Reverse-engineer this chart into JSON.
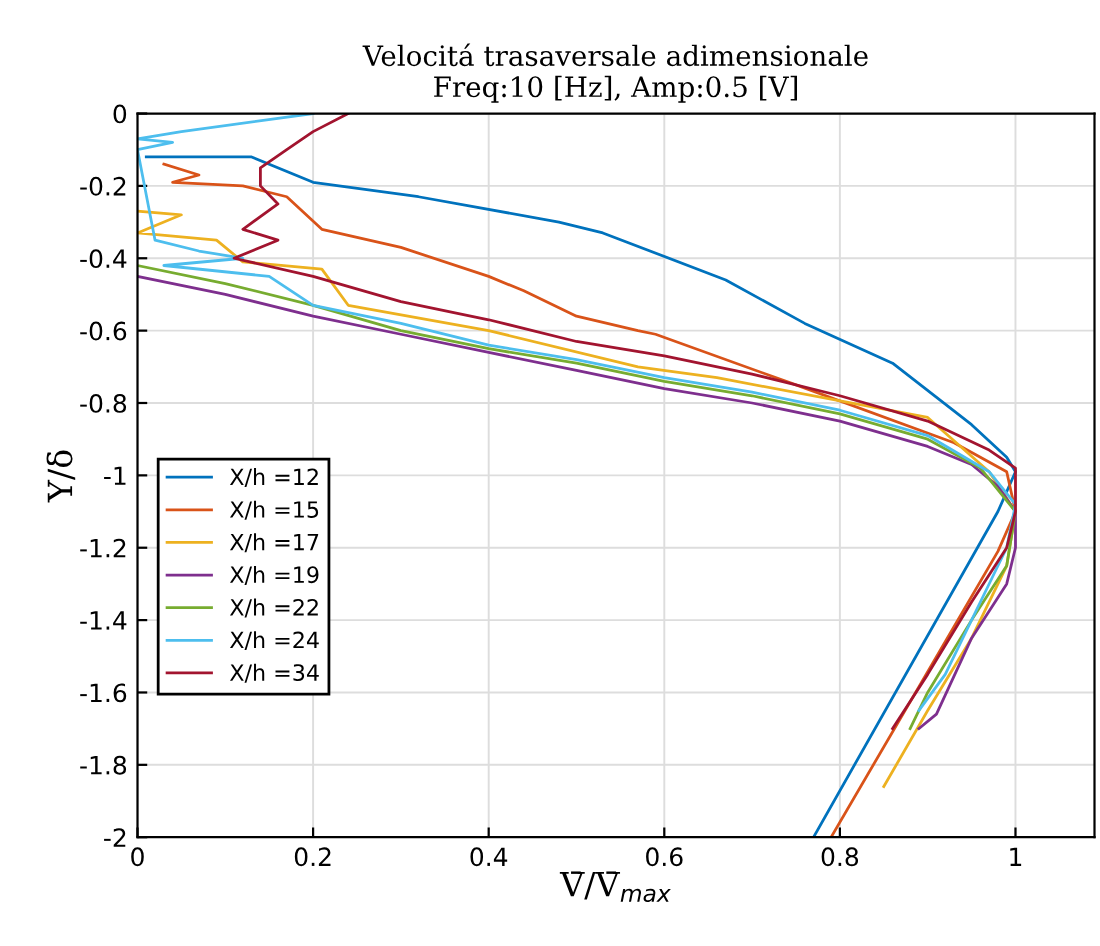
{
  "chart_data": {
    "type": "line",
    "title": "Velocitá trasaversale adimensionale",
    "subtitle": "Freq:10 [Hz], Amp:0.5 [V]",
    "xlabel": "V̄/V̄$_{max}$",
    "ylabel": "Y/δ",
    "xlim": [
      0,
      1.09
    ],
    "ylim": [
      -2,
      0
    ],
    "xticks": [
      0,
      0.2,
      0.4,
      0.6,
      0.8,
      1
    ],
    "yticks": [
      0,
      -0.2,
      -0.4,
      -0.6,
      -0.8,
      -1,
      -1.2,
      -1.4,
      -1.6,
      -1.8,
      -2
    ],
    "grid": true,
    "legend": "left",
    "line_style": "solid",
    "series": [
      {
        "name": "X/h =12",
        "color": "#0072bd",
        "x": [
          0.01,
          0.13,
          0.2,
          0.32,
          0.48,
          0.53,
          0.67,
          0.76,
          0.86,
          0.95,
          0.99,
          1.0,
          0.98,
          0.77
        ],
        "values": [
          -0.12,
          -0.12,
          -0.19,
          -0.23,
          -0.3,
          -0.33,
          -0.46,
          -0.58,
          -0.69,
          -0.86,
          -0.95,
          -0.99,
          -1.1,
          -2.0
        ]
      },
      {
        "name": "X/h =15",
        "color": "#d95319",
        "x": [
          0.03,
          0.07,
          0.04,
          0.12,
          0.17,
          0.21,
          0.3,
          0.4,
          0.44,
          0.5,
          0.57,
          0.59,
          0.75,
          0.93,
          0.99,
          1.0,
          0.98,
          0.79
        ],
        "values": [
          -0.14,
          -0.17,
          -0.19,
          -0.2,
          -0.23,
          -0.32,
          -0.37,
          -0.45,
          -0.49,
          -0.56,
          -0.6,
          -0.61,
          -0.75,
          -0.91,
          -0.99,
          -1.1,
          -1.21,
          -2.0
        ]
      },
      {
        "name": "X/h =17",
        "color": "#edb120",
        "x": [
          0,
          0.05,
          0,
          0.09,
          0.12,
          0.21,
          0.24,
          0.4,
          0.57,
          0.66,
          0.9,
          0.97,
          1.0,
          0.99,
          0.95,
          0.9,
          0.85
        ],
        "values": [
          -0.27,
          -0.28,
          -0.33,
          -0.35,
          -0.41,
          -0.43,
          -0.53,
          -0.6,
          -0.7,
          -0.73,
          -0.84,
          -0.99,
          -1.1,
          -1.25,
          -1.45,
          -1.65,
          -1.86
        ]
      },
      {
        "name": "X/h =19",
        "color": "#7e2f8e",
        "x": [
          0,
          0.1,
          0.2,
          0.3,
          0.4,
          0.5,
          0.6,
          0.7,
          0.8,
          0.9,
          0.95,
          0.98,
          1.0,
          1.0,
          0.99,
          0.95,
          0.91,
          0.89
        ],
        "values": [
          -0.45,
          -0.5,
          -0.56,
          -0.61,
          -0.66,
          -0.71,
          -0.76,
          -0.8,
          -0.85,
          -0.92,
          -0.97,
          -1.03,
          -1.1,
          -1.2,
          -1.3,
          -1.45,
          -1.66,
          -1.7
        ]
      },
      {
        "name": "X/h =22",
        "color": "#77ac30",
        "x": [
          0,
          0.1,
          0.2,
          0.3,
          0.4,
          0.5,
          0.6,
          0.7,
          0.8,
          0.9,
          0.96,
          1.0,
          0.99,
          0.95,
          0.9,
          0.88
        ],
        "values": [
          -0.42,
          -0.47,
          -0.53,
          -0.6,
          -0.65,
          -0.69,
          -0.74,
          -0.78,
          -0.83,
          -0.9,
          -0.98,
          -1.1,
          -1.25,
          -1.4,
          -1.6,
          -1.7
        ]
      },
      {
        "name": "X/h =24",
        "color": "#4dbeee",
        "x": [
          0.2,
          0.05,
          0,
          0.04,
          0,
          0.02,
          0.07,
          0.12,
          0.03,
          0.15,
          0.2,
          0.3,
          0.4,
          0.5,
          0.6,
          0.7,
          0.8,
          0.9,
          0.97,
          1.0,
          0.99,
          0.96,
          0.92,
          0.89
        ],
        "values": [
          0,
          -0.05,
          -0.07,
          -0.08,
          -0.1,
          -0.35,
          -0.38,
          -0.4,
          -0.42,
          -0.45,
          -0.53,
          -0.58,
          -0.64,
          -0.68,
          -0.73,
          -0.77,
          -0.82,
          -0.89,
          -0.99,
          -1.08,
          -1.2,
          -1.35,
          -1.55,
          -1.65
        ]
      },
      {
        "name": "X/h =34",
        "color": "#a2142f",
        "x": [
          0.24,
          0.2,
          0.17,
          0.14,
          0.14,
          0.16,
          0.12,
          0.16,
          0.11,
          0.2,
          0.3,
          0.4,
          0.5,
          0.6,
          0.7,
          0.8,
          0.9,
          0.97,
          1.0,
          1.0,
          0.99,
          0.95,
          0.9,
          0.86
        ],
        "values": [
          0,
          -0.05,
          -0.1,
          -0.15,
          -0.2,
          -0.25,
          -0.32,
          -0.35,
          -0.4,
          -0.45,
          -0.52,
          -0.57,
          -0.63,
          -0.67,
          -0.72,
          -0.78,
          -0.85,
          -0.93,
          -0.98,
          -1.1,
          -1.2,
          -1.35,
          -1.55,
          -1.7
        ]
      }
    ]
  }
}
